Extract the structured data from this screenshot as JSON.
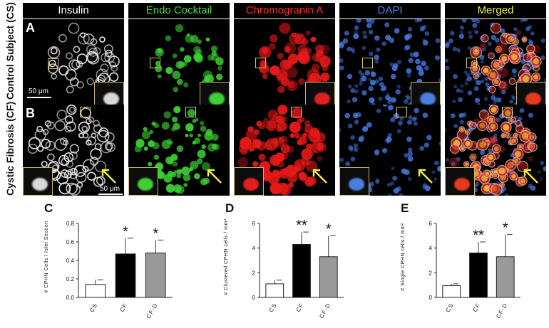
{
  "channels": [
    {
      "title": "Insulin",
      "color": "#ffffff"
    },
    {
      "title": "Endo Cocktail",
      "color": "#49d83a"
    },
    {
      "title": "Chromogranin A",
      "color": "#ff2a2a"
    },
    {
      "title": "DAPI",
      "color": "#4a86e8"
    },
    {
      "title": "Merged",
      "color": "#f5ef3c"
    }
  ],
  "rows": [
    {
      "letter": "A",
      "label": "Control Subject (CS)",
      "scale": "50 μm"
    },
    {
      "letter": "B",
      "label": "Cystic Fibrosis (CF)",
      "scale": "50 μm"
    }
  ],
  "chart_data": [
    {
      "type": "bar",
      "letter": "C",
      "categories": [
        "CS",
        "CF",
        "CF-D"
      ],
      "values": [
        0.14,
        0.47,
        0.48
      ],
      "errors": [
        0.05,
        0.17,
        0.14
      ],
      "significance": [
        "",
        "*",
        "*"
      ],
      "ylabel": "# CPHN Cells / Islet Section",
      "ylim": [
        0,
        0.8
      ],
      "yticks": [
        "0.0",
        "0.2",
        "0.4",
        "0.6",
        "0.8"
      ],
      "bar_colors": [
        "#ffffff",
        "#000000",
        "#999999"
      ]
    },
    {
      "type": "bar",
      "letter": "D",
      "categories": [
        "CS",
        "CF",
        "CF-D"
      ],
      "values": [
        1.1,
        4.3,
        3.3
      ],
      "errors": [
        0.3,
        1.0,
        1.7
      ],
      "significance": [
        "",
        "**",
        "*"
      ],
      "ylabel": "# Clustered CPHN cells / mm²",
      "ylim": [
        0,
        6
      ],
      "yticks": [
        "0",
        "2",
        "4",
        "6"
      ],
      "bar_colors": [
        "#ffffff",
        "#000000",
        "#999999"
      ]
    },
    {
      "type": "bar",
      "letter": "E",
      "categories": [
        "CS",
        "CF",
        "CF-D"
      ],
      "values": [
        0.95,
        3.6,
        3.3
      ],
      "errors": [
        0.15,
        0.9,
        1.8
      ],
      "significance": [
        "",
        "**",
        "*"
      ],
      "ylabel": "# Single CPHN cells / mm²",
      "ylim": [
        0,
        6
      ],
      "yticks": [
        "0",
        "2",
        "4",
        "6"
      ],
      "bar_colors": [
        "#ffffff",
        "#000000",
        "#999999"
      ]
    }
  ]
}
